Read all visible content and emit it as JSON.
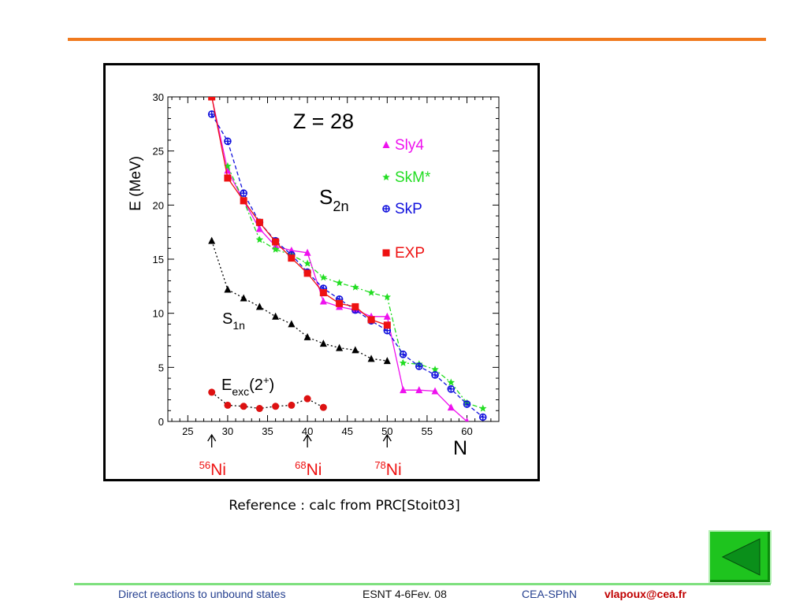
{
  "slide": {
    "caption": "Reference : calc from PRC[Stoit03]",
    "footer": {
      "title": "Direct reactions to unbound states",
      "event": "ESNT 4-6Fev. 08",
      "org": "CEA-SPhN",
      "email": "vlapoux@cea.fr"
    },
    "colors": {
      "top_rule": "#f07a1e",
      "bottom_rule": "#7ee07e",
      "nav_button": "#1ec41e",
      "nav_arrow": "#0a8f1a"
    },
    "nav_icon": "back-arrow-icon"
  },
  "chart_data": {
    "type": "line",
    "title": "Z = 28",
    "xlabel": "N",
    "ylabel": "E (MeV)",
    "xlim": [
      22.5,
      64
    ],
    "ylim": [
      0,
      30
    ],
    "xticks": [
      25,
      30,
      35,
      40,
      45,
      50,
      55,
      60
    ],
    "yticks": [
      0,
      5,
      10,
      15,
      20,
      25,
      30
    ],
    "grid": false,
    "legend": "right",
    "series": [
      {
        "name": "Sly4",
        "color": "#ee11ee",
        "marker": "triangle",
        "dash": "solid",
        "x": [
          28,
          30,
          32,
          34,
          36,
          38,
          40,
          42,
          44,
          46,
          48,
          50,
          52,
          54,
          56,
          58,
          60
        ],
        "y": [
          30,
          23.2,
          20.4,
          17.8,
          16.2,
          15.8,
          15.6,
          11.1,
          10.6,
          10.3,
          9.7,
          9.7,
          2.9,
          2.9,
          2.8,
          1.3,
          0
        ]
      },
      {
        "name": "SkM*",
        "color": "#22dd22",
        "marker": "star",
        "dash": "dashdot",
        "x": [
          30,
          32,
          34,
          36,
          38,
          40,
          42,
          44,
          46,
          48,
          50,
          52,
          54,
          56,
          58,
          60,
          62
        ],
        "y": [
          23.6,
          20.4,
          16.8,
          15.9,
          15.4,
          14.6,
          13.3,
          12.8,
          12.4,
          11.9,
          11.5,
          5.4,
          5.3,
          4.8,
          3.6,
          1.7,
          1.2
        ]
      },
      {
        "name": "SkP",
        "color": "#1111dd",
        "marker": "circle-cross",
        "dash": "dashed",
        "x": [
          28,
          30,
          32,
          34,
          36,
          38,
          40,
          42,
          44,
          46,
          48,
          50,
          52,
          54,
          56,
          58,
          60,
          62
        ],
        "y": [
          28.4,
          25.9,
          21.1,
          18.4,
          16.7,
          15.4,
          13.8,
          12.3,
          11.3,
          10.3,
          9.3,
          8.4,
          6.2,
          5.1,
          4.3,
          3.0,
          1.6,
          0.4
        ]
      },
      {
        "name": "EXP",
        "color": "#ee1111",
        "marker": "square",
        "dash": "solid",
        "x": [
          28,
          30,
          32,
          34,
          36,
          38,
          40,
          42,
          44,
          46,
          48,
          50
        ],
        "y": [
          30,
          22.5,
          20.4,
          18.4,
          16.6,
          15.1,
          13.7,
          11.9,
          10.9,
          10.6,
          9.4,
          8.9
        ]
      },
      {
        "name": "",
        "color": "#000000",
        "marker": "triangle",
        "dash": "dotted",
        "x": [
          28,
          30,
          32,
          34,
          36,
          38,
          40,
          42,
          44,
          46,
          48,
          50
        ],
        "y": [
          16.7,
          12.2,
          11.4,
          10.6,
          9.7,
          9.0,
          7.8,
          7.2,
          6.8,
          6.6,
          5.8,
          5.6
        ]
      },
      {
        "name": "",
        "color": "#dd1111",
        "marker": "circle",
        "dash": "dotted",
        "line_color": "#000000",
        "x": [
          28,
          30,
          32,
          34,
          36,
          38,
          40,
          42
        ],
        "y": [
          2.7,
          1.5,
          1.4,
          1.2,
          1.4,
          1.5,
          2.1,
          1.3
        ]
      }
    ],
    "annotations": {
      "s2n": {
        "main": "S",
        "sub": "2n"
      },
      "s1n": {
        "main": "S",
        "sub": "1n"
      },
      "eexc": {
        "main": "E",
        "sub": "exc",
        "rest": "(2",
        "sup": "+",
        "close": ")"
      },
      "nuclei": [
        {
          "N": 28,
          "mass": "56",
          "symbol": "Ni"
        },
        {
          "N": 40,
          "mass": "68",
          "symbol": "Ni"
        },
        {
          "N": 50,
          "mass": "78",
          "symbol": "Ni"
        }
      ]
    }
  }
}
